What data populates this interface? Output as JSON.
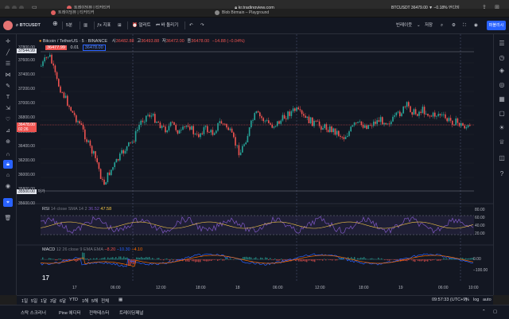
{
  "browser": {
    "tabs": [
      {
        "label": "트레이딩뷰 | 티커티커",
        "fav_color": "#e06060"
      },
      {
        "label": "Blob Birmain – Playground",
        "fav_color": "#888888"
      }
    ],
    "url": "kr.tradingview.com",
    "ticker_tab": "BTCUSDT 36479.00 ▼ −0.18% 언디잉"
  },
  "header": {
    "symbol": "BTCUSDT",
    "interval": "5분",
    "indicators_label": "지표",
    "alert_label": "얼러트",
    "replay_label": "바 돌리기",
    "layout_label": "빈레이웃",
    "save_label": "저장",
    "publish_label": "퍼블리시"
  },
  "legend": {
    "title": "Bitcoin / TetherUS · 5 · BINANCE",
    "o_label": "시",
    "o_val": "36482.88",
    "h_label": "고",
    "h_val": "36493.88",
    "l_label": "저",
    "l_val": "36472.00",
    "c_label": "종",
    "c_val": "36478.00",
    "change": "−14.88 (−0.04%)",
    "bid": "36477.99",
    "spread": "0.01",
    "ask": "36478.00"
  },
  "rsi_legend": {
    "name": "RSI",
    "params": "14 close SMA 14 2",
    "v1": "36.52",
    "v2": "47.58"
  },
  "macd_legend": {
    "name": "MACD",
    "params": "12 26 close 9 EMA EMA",
    "v1": "−8.20",
    "v2": "−10.30",
    "v3": "−4.10"
  },
  "price_axis": [
    "37800.00",
    "37600.00",
    "37400.00",
    "37200.00",
    "37000.00",
    "36800.00",
    "36600.00",
    "36400.00",
    "36200.00",
    "36000.00",
    "35800.00",
    "35600.00"
  ],
  "price_badges": {
    "top": "37544.99",
    "current": "36478.00",
    "countdown": "02:26",
    "bottom": "35500.00",
    "bottom_suffix": "저가"
  },
  "rsi_axis": [
    "80.00",
    "60.00",
    "40.00",
    "20.00"
  ],
  "macd_axis": [
    "0.00",
    "−100.00"
  ],
  "time_axis": [
    "17",
    "06:00",
    "12:00",
    "18:00",
    "18",
    "06:00",
    "12:00",
    "18:00",
    "19",
    "06:00",
    "10:00"
  ],
  "bottom_bar": {
    "ranges": [
      "1일",
      "5일",
      "1달",
      "3달",
      "6달",
      "YTD",
      "1해",
      "5해",
      "전체"
    ],
    "clock": "09:57:33 (UTC+9)",
    "adj": "%",
    "log": "log",
    "auto": "auto"
  },
  "footer": {
    "items": [
      "스탁 스크리너",
      "Pine 에디터",
      "전략테스터",
      "트레이딩패널"
    ]
  },
  "colors": {
    "up": "#26a69a",
    "down": "#ef5350",
    "rsi": "#7e57c2",
    "accent": "#2962ff"
  }
}
